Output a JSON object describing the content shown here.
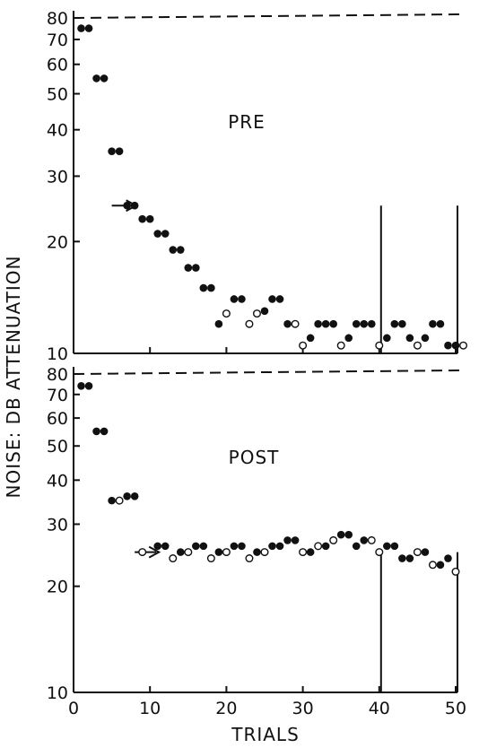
{
  "chart_data": [
    {
      "type": "scatter",
      "title": "PRE",
      "xlabel": "TRIALS",
      "ylabel": "NOISE: DB ATTENUATION",
      "xlim": [
        0,
        50
      ],
      "ylim": [
        10,
        80
      ],
      "y_scale": "log",
      "y_ticks": [
        10,
        20,
        30,
        40,
        50,
        60,
        70,
        80
      ],
      "x_ticks": [
        0,
        10,
        20,
        30,
        40,
        50
      ],
      "reference_line_y": 80,
      "vertical_lines_x": [
        40,
        50
      ],
      "arrow_at": {
        "x": 5,
        "y": 25
      },
      "series": [
        {
          "marker": "filled",
          "x": [
            1,
            2,
            3,
            4,
            5,
            6,
            7,
            8,
            9,
            10,
            11,
            12,
            13,
            14,
            15,
            16,
            17,
            18,
            19,
            21,
            22,
            25,
            26,
            27,
            28,
            31,
            32,
            33,
            34,
            36,
            37,
            38,
            39,
            41,
            42,
            43,
            44,
            46,
            47,
            48,
            49,
            50
          ],
          "y": [
            75,
            75,
            55,
            55,
            35,
            35,
            25,
            25,
            23,
            23,
            21,
            21,
            19,
            19,
            17,
            17,
            15,
            15,
            12,
            14,
            14,
            13,
            14,
            14,
            12,
            11,
            12,
            12,
            12,
            11,
            12,
            12,
            12,
            11,
            12,
            12,
            11,
            11,
            12,
            12,
            10.5,
            10.5
          ]
        },
        {
          "marker": "open",
          "x": [
            20,
            23,
            24,
            29,
            30,
            35,
            40,
            45,
            51
          ],
          "y": [
            12.8,
            12,
            12.8,
            12,
            10.5,
            10.5,
            10.5,
            10.5,
            10.5
          ]
        }
      ]
    },
    {
      "type": "scatter",
      "title": "POST",
      "xlabel": "TRIALS",
      "ylabel": "NOISE: DB ATTENUATION",
      "xlim": [
        0,
        50
      ],
      "ylim": [
        10,
        80
      ],
      "y_scale": "log",
      "y_ticks": [
        10,
        20,
        30,
        40,
        50,
        60,
        70,
        80
      ],
      "x_ticks": [
        0,
        10,
        20,
        30,
        40,
        50
      ],
      "reference_line_y": 80,
      "vertical_lines_x": [
        40,
        50
      ],
      "arrow_at": {
        "x": 8,
        "y": 25
      },
      "series": [
        {
          "marker": "filled",
          "x": [
            1,
            2,
            3,
            4,
            5,
            7,
            8,
            11,
            12,
            14,
            16,
            17,
            19,
            21,
            22,
            24,
            26,
            27,
            28,
            29,
            31,
            33,
            34,
            35,
            36,
            37,
            38,
            41,
            42,
            43,
            44,
            46,
            48,
            49
          ],
          "y": [
            74,
            74,
            55,
            55,
            35,
            36,
            36,
            26,
            26,
            25,
            26,
            26,
            25,
            26,
            26,
            25,
            26,
            26,
            27,
            27,
            25,
            26,
            27,
            28,
            28,
            26,
            27,
            26,
            26,
            24,
            24,
            25,
            23,
            24
          ]
        },
        {
          "marker": "open",
          "x": [
            6,
            9,
            13,
            15,
            18,
            20,
            23,
            25,
            30,
            32,
            34,
            39,
            40,
            45,
            47,
            50
          ],
          "y": [
            35,
            25,
            24,
            25,
            24,
            25,
            24,
            25,
            25,
            26,
            27,
            27,
            25,
            25,
            23,
            22
          ]
        }
      ]
    }
  ]
}
